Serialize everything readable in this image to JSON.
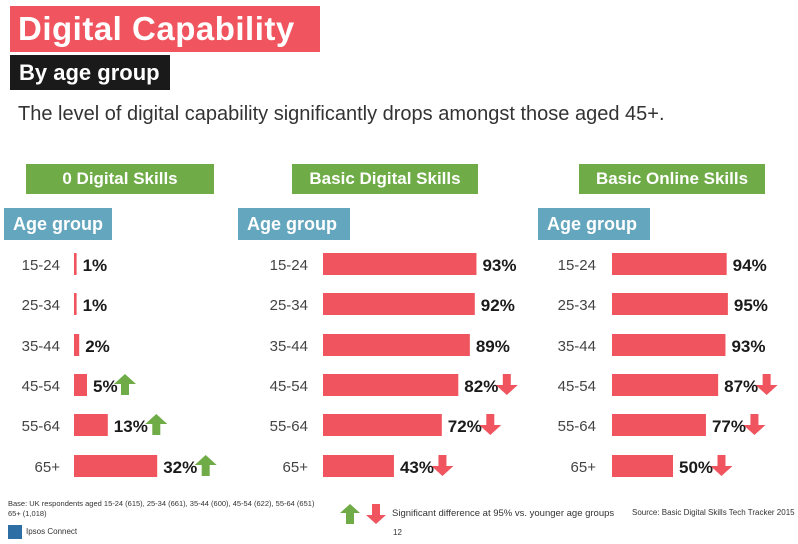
{
  "title": "Digital Capability",
  "subtitle": "By age group",
  "description": "The level of digital capability significantly drops amongst those aged 45+.",
  "age_header_label": "Age group",
  "colors": {
    "bar": "#f0555f",
    "panel_header": "#6fab46",
    "age_header": "#63a6bd",
    "up_arrow": "#6fab46",
    "down_arrow": "#f0555f"
  },
  "chart_data": [
    {
      "type": "bar",
      "title": "0 Digital Skills",
      "categories": [
        "15-24",
        "25-34",
        "35-44",
        "45-54",
        "55-64",
        "65+"
      ],
      "values": [
        1,
        1,
        2,
        5,
        13,
        32
      ],
      "labels": [
        "1%",
        "1%",
        "2%",
        "5%",
        "13%",
        "32%"
      ],
      "significance": [
        "none",
        "none",
        "none",
        "up",
        "up",
        "up"
      ],
      "orientation": "horizontal"
    },
    {
      "type": "bar",
      "title": "Basic Digital Skills",
      "categories": [
        "15-24",
        "25-34",
        "35-44",
        "45-54",
        "55-64",
        "65+"
      ],
      "values": [
        93,
        92,
        89,
        82,
        72,
        43
      ],
      "labels": [
        "93%",
        "92%",
        "89%",
        "82%",
        "72%",
        "43%"
      ],
      "significance": [
        "none",
        "none",
        "none",
        "down",
        "down",
        "down"
      ],
      "orientation": "horizontal"
    },
    {
      "type": "bar",
      "title": "Basic Online Skills",
      "categories": [
        "15-24",
        "25-34",
        "35-44",
        "45-54",
        "55-64",
        "65+"
      ],
      "values": [
        94,
        95,
        93,
        87,
        77,
        50
      ],
      "labels": [
        "94%",
        "95%",
        "93%",
        "87%",
        "77%",
        "50%"
      ],
      "significance": [
        "none",
        "none",
        "none",
        "down",
        "down",
        "down"
      ],
      "orientation": "horizontal"
    }
  ],
  "footnote": "Base: UK respondents aged 15-24 (615), 25-34 (661), 35-44 (600), 45-54 (622), 55-64 (651) 65+ (1,018)",
  "legend_text": "Significant difference at 95% vs. younger age groups",
  "source": "Source: Basic Digital Skills Tech Tracker 2015",
  "brand": "Ipsos Connect",
  "page_number": "12"
}
